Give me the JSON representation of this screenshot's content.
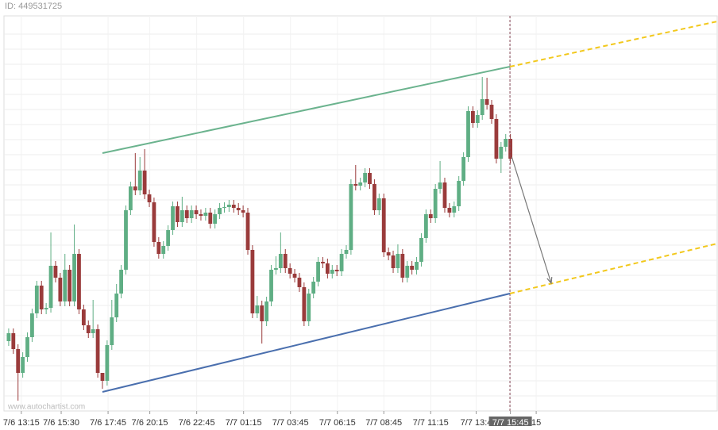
{
  "header": {
    "id": "ID: 449531725"
  },
  "chart_data": {
    "type": "candlestick",
    "watermark": "www.autochartist.com",
    "xlim": [
      -1,
      151.1
    ],
    "ylim": [
      0,
      498
    ],
    "grid": true,
    "up_color": "#5fae84",
    "down_color": "#9a3b3b",
    "yticks": [
      19,
      38,
      57,
      76,
      95,
      114,
      133,
      152,
      171,
      190,
      209,
      228,
      247,
      266,
      285,
      304,
      323,
      342,
      361,
      380,
      399,
      418,
      437,
      456,
      475
    ],
    "xticks": [
      {
        "value": 2.7,
        "label": "7/6 13:15"
      },
      {
        "value": 11.2,
        "label": "7/6 15:30"
      },
      {
        "value": 21.2,
        "label": "7/6 17:45"
      },
      {
        "value": 30.1,
        "label": "7/6 20:15"
      },
      {
        "value": 40.1,
        "label": "7/6 22:45"
      },
      {
        "value": 50.1,
        "label": "7/7 01:15"
      },
      {
        "value": 60.1,
        "label": "7/7 03:45"
      },
      {
        "value": 70.1,
        "label": "7/7 06:15"
      },
      {
        "value": 80.0,
        "label": "7/7 08:45"
      },
      {
        "value": 90.0,
        "label": "7/7 11:15"
      },
      {
        "value": 99.7,
        "label": "7/7 13:4"
      },
      {
        "value": 107,
        "label": "7/7 15:45"
      },
      {
        "value": 112.5,
        "label": "15"
      }
    ],
    "highlight_tick": 11,
    "open": [
      88,
      98,
      78,
      48,
      68,
      93,
      123,
      158,
      128,
      130,
      183,
      168,
      138,
      178,
      138,
      198,
      128,
      108,
      98,
      103,
      48,
      38,
      83,
      118,
      148,
      178,
      253,
      283,
      278,
      303,
      273,
      263,
      213,
      198,
      208,
      228,
      258,
      238,
      253,
      243,
      253,
      248,
      246,
      250,
      236,
      248,
      256,
      257,
      260,
      256,
      253,
      250,
      203,
      123,
      133,
      113,
      138,
      178,
      180,
      198,
      180,
      173,
      168,
      156,
      113,
      148,
      163,
      188,
      186,
      173,
      178,
      176,
      198,
      203,
      286,
      284,
      288,
      300,
      286,
      253,
      268,
      200,
      196,
      180,
      198,
      168,
      183,
      178,
      188,
      218,
      248,
      243,
      280,
      288,
      256,
      250,
      258,
      290,
      320,
      378,
      363,
      373,
      393,
      386,
      368,
      318,
      333,
      343
    ],
    "high": [
      104,
      104,
      84,
      74,
      99,
      129,
      164,
      164,
      136,
      225,
      189,
      174,
      198,
      184,
      235,
      204,
      134,
      114,
      140,
      109,
      44,
      89,
      140,
      160,
      184,
      259,
      289,
      325,
      320,
      330,
      279,
      269,
      219,
      214,
      234,
      264,
      264,
      270,
      259,
      259,
      259,
      254,
      256,
      256,
      254,
      262,
      263,
      266,
      266,
      262,
      259,
      256,
      209,
      145,
      139,
      144,
      184,
      195,
      225,
      204,
      186,
      179,
      174,
      162,
      154,
      169,
      194,
      194,
      192,
      184,
      184,
      204,
      209,
      292,
      310,
      294,
      306,
      306,
      292,
      274,
      274,
      206,
      202,
      210,
      204,
      189,
      189,
      194,
      224,
      254,
      254,
      286,
      315,
      294,
      262,
      264,
      296,
      326,
      384,
      384,
      379,
      421,
      420,
      392,
      374,
      339,
      349,
      349
    ],
    "low": [
      82,
      72,
      13,
      42,
      62,
      87,
      117,
      122,
      122,
      124,
      162,
      132,
      132,
      132,
      132,
      122,
      102,
      92,
      92,
      42,
      28,
      32,
      77,
      112,
      142,
      172,
      247,
      272,
      272,
      267,
      257,
      207,
      192,
      192,
      202,
      222,
      232,
      232,
      237,
      237,
      242,
      240,
      240,
      230,
      230,
      242,
      250,
      251,
      250,
      247,
      244,
      197,
      117,
      117,
      85,
      107,
      132,
      172,
      174,
      174,
      167,
      162,
      150,
      107,
      107,
      142,
      157,
      180,
      167,
      167,
      170,
      170,
      192,
      197,
      278,
      278,
      282,
      280,
      247,
      247,
      194,
      190,
      174,
      174,
      162,
      162,
      172,
      172,
      182,
      212,
      237,
      237,
      274,
      250,
      244,
      244,
      252,
      284,
      314,
      357,
      357,
      367,
      380,
      362,
      312,
      300,
      327,
      312
    ],
    "close": [
      98,
      78,
      48,
      68,
      93,
      123,
      158,
      128,
      130,
      183,
      168,
      138,
      178,
      138,
      198,
      128,
      108,
      98,
      103,
      48,
      38,
      83,
      118,
      148,
      178,
      253,
      283,
      278,
      303,
      273,
      263,
      213,
      198,
      208,
      228,
      258,
      238,
      253,
      243,
      253,
      248,
      246,
      250,
      236,
      248,
      256,
      257,
      260,
      256,
      253,
      250,
      203,
      123,
      133,
      113,
      138,
      178,
      180,
      198,
      180,
      173,
      168,
      156,
      113,
      148,
      163,
      188,
      186,
      173,
      178,
      176,
      198,
      203,
      286,
      284,
      288,
      300,
      286,
      253,
      268,
      200,
      196,
      180,
      198,
      168,
      183,
      178,
      188,
      218,
      248,
      243,
      280,
      288,
      256,
      250,
      258,
      290,
      320,
      378,
      363,
      373,
      393,
      386,
      368,
      318,
      333,
      343,
      318
    ],
    "trend_lines": [
      {
        "color": "#6bb38e",
        "style": "solid",
        "x": [
          20,
          106.9
        ],
        "y": [
          325,
          434
        ]
      },
      {
        "color": "#4a6fae",
        "style": "solid",
        "x": [
          20,
          106.9
        ],
        "y": [
          24,
          148
        ]
      },
      {
        "color": "#f2c81c",
        "style": "dashed",
        "x": [
          106.9,
          151.1
        ],
        "y": [
          434,
          491
        ]
      },
      {
        "color": "#f2c81c",
        "style": "dashed",
        "x": [
          106.9,
          151.1
        ],
        "y": [
          148,
          211
        ]
      }
    ],
    "arrow": {
      "color": "#777777",
      "x": [
        107.3,
        115.7
      ],
      "y": [
        320,
        161
      ]
    },
    "now_line": {
      "color": "#8a4a5a",
      "x": 106.9
    }
  }
}
